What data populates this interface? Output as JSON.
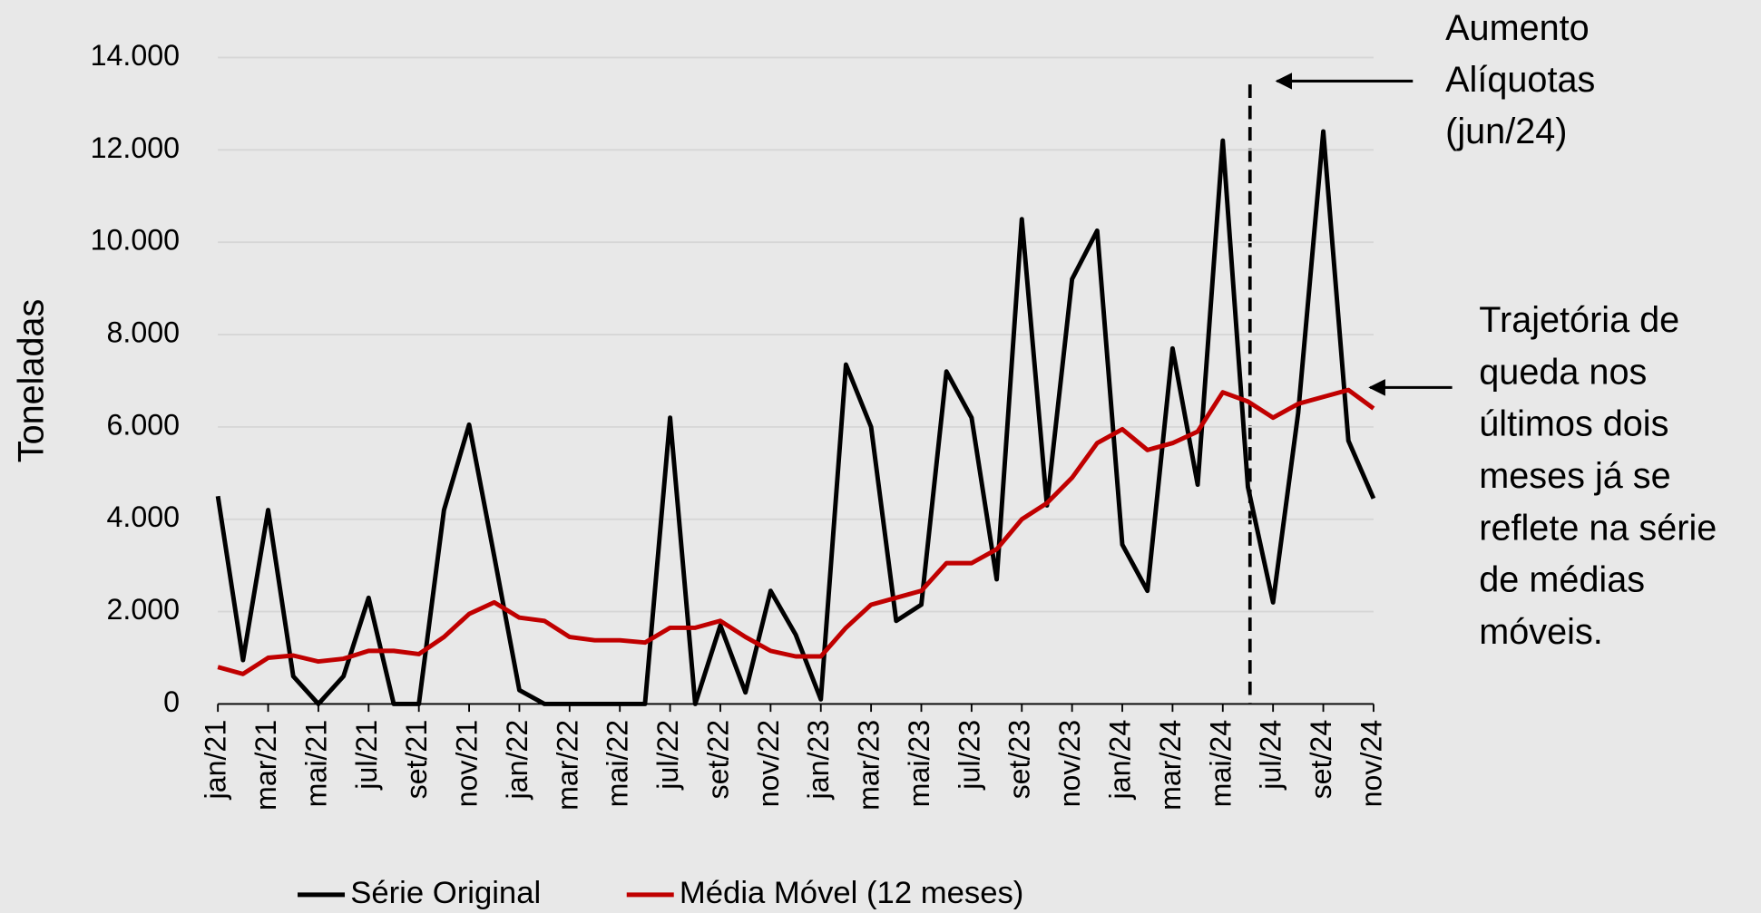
{
  "chart_data": {
    "type": "line",
    "ylabel": "Toneladas",
    "categories": [
      "jan/21",
      null,
      "mar/21",
      null,
      "mai/21",
      null,
      "jul/21",
      null,
      "set/21",
      null,
      "nov/21",
      null,
      "jan/22",
      null,
      "mar/22",
      null,
      "mai/22",
      null,
      "jul/22",
      null,
      "set/22",
      null,
      "nov/22",
      null,
      "jan/23",
      null,
      "mar/23",
      null,
      "mai/23",
      null,
      "jul/23",
      null,
      "set/23",
      null,
      "nov/23",
      null,
      "jan/24",
      null,
      "mar/24",
      null,
      "mai/24",
      null,
      "jul/24",
      null,
      "set/24",
      null,
      "nov/24"
    ],
    "series": [
      {
        "name": "Série Original",
        "color": "#000000",
        "values": [
          4500,
          950,
          4200,
          600,
          0,
          600,
          2300,
          0,
          0,
          4200,
          6050,
          3200,
          300,
          0,
          0,
          0,
          0,
          0,
          6200,
          0,
          1700,
          250,
          2450,
          1500,
          100,
          7350,
          6000,
          1800,
          2150,
          7200,
          6200,
          2700,
          10500,
          4300,
          9200,
          10250,
          3450,
          2450,
          7700,
          4750,
          12200,
          4700,
          2200,
          6300,
          12400,
          5700,
          4450
        ]
      },
      {
        "name": "Média Móvel (12 meses)",
        "color": "#c00000",
        "values": [
          800,
          650,
          1000,
          1050,
          920,
          980,
          1150,
          1150,
          1080,
          1450,
          1950,
          2200,
          1870,
          1800,
          1450,
          1380,
          1380,
          1330,
          1650,
          1650,
          1800,
          1450,
          1150,
          1030,
          1030,
          1650,
          2150,
          2300,
          2450,
          3050,
          3050,
          3350,
          4000,
          4350,
          4900,
          5650,
          5950,
          5500,
          5650,
          5900,
          6750,
          6550,
          6200,
          6500,
          6650,
          6800,
          6400
        ]
      }
    ],
    "ylim": [
      0,
      14000
    ],
    "yticks": [
      0,
      {
        "value": 2000,
        "label": "2.000"
      },
      {
        "value": 4000,
        "label": "4.000"
      },
      {
        "value": 6000,
        "label": "6.000"
      },
      {
        "value": 8000,
        "label": "8.000"
      },
      {
        "value": 10000,
        "label": "10.000"
      },
      {
        "value": 12000,
        "label": "12.000"
      },
      {
        "value": 14000,
        "label": "14.000"
      }
    ],
    "grid": true,
    "legend": "bottom",
    "annotations": [
      {
        "lines": [
          "Aumento",
          "Alíquotas",
          "(jun/24)"
        ]
      },
      {
        "lines": [
          "Trajetória de",
          "queda nos",
          "últimos dois",
          "meses já se",
          "reflete na série",
          "de médias",
          "móveis."
        ]
      }
    ]
  }
}
